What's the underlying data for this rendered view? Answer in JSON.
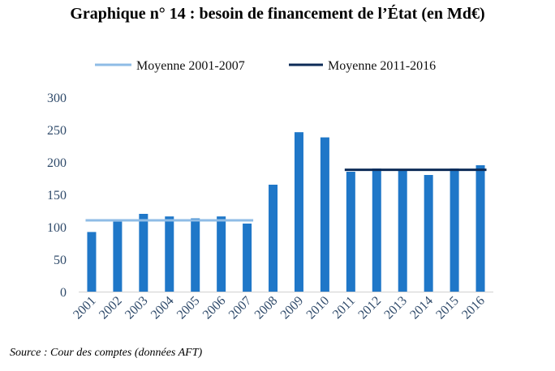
{
  "title": "Graphique n° 14 : besoin de financement de l’État (en Md€)",
  "source": "Source : Cour des comptes (données AFT)",
  "chart_data": {
    "type": "bar",
    "title": "Graphique n° 14 : besoin de financement de l’État (en Md€)",
    "xlabel": "",
    "ylabel": "",
    "ylim": [
      0,
      300
    ],
    "yticks": [
      0,
      50,
      100,
      150,
      200,
      250,
      300
    ],
    "categories": [
      "2001",
      "2002",
      "2003",
      "2004",
      "2005",
      "2006",
      "2007",
      "2008",
      "2009",
      "2010",
      "2011",
      "2012",
      "2013",
      "2014",
      "2015",
      "2016"
    ],
    "values": [
      92,
      108,
      120,
      116,
      113,
      116,
      105,
      165,
      246,
      238,
      185,
      190,
      188,
      180,
      190,
      195
    ],
    "bar_color": "#1f77c8",
    "reference_lines": [
      {
        "name": "Moyenne 2001-2007",
        "value": 110,
        "from": "2001",
        "to": "2007",
        "color": "#8fbce6"
      },
      {
        "name": "Moyenne 2011-2016",
        "value": 188,
        "from": "2011",
        "to": "2016",
        "color": "#0d2b57"
      }
    ],
    "legend_position": "top"
  }
}
